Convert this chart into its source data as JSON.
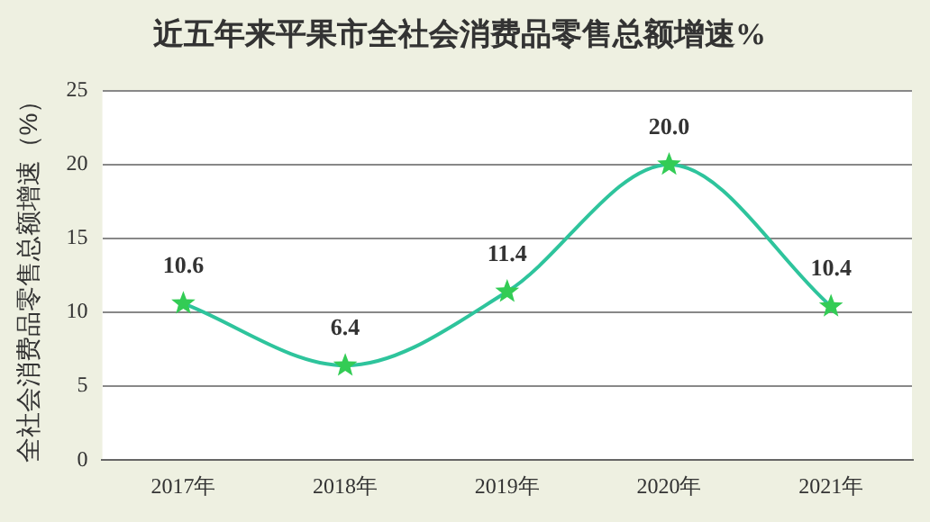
{
  "chart_data": {
    "type": "line",
    "title": "近五年来平果市全社会消费品零售总额增速%",
    "ylabel": "全社会消费品零售总额增速（%）",
    "categories": [
      "2017年",
      "2018年",
      "2019年",
      "2020年",
      "2021年"
    ],
    "series": [
      {
        "color": "#2ec49c",
        "values": [
          10.6,
          6.4,
          11.4,
          20.0,
          10.4
        ],
        "value_labels": [
          "10.6",
          "6.4",
          "11.4",
          "20.0",
          "10.4"
        ]
      }
    ],
    "ylim": [
      0,
      25
    ],
    "yticks": [
      0,
      5,
      10,
      15,
      20,
      25
    ],
    "grid": "y",
    "legend": false,
    "marker": "star"
  }
}
